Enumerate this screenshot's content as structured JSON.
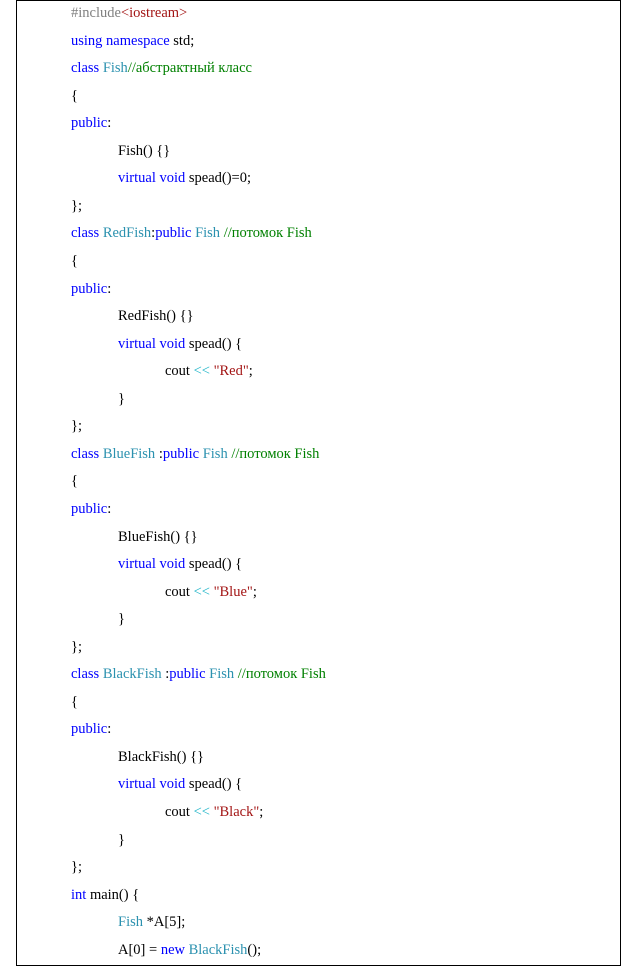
{
  "colors": {
    "keyword": "#0000ff",
    "type": "#2b91af",
    "comment": "#008000",
    "string": "#a31515",
    "operator": "#1fb5c8",
    "preprocessor": "#808080",
    "include_target": "#a31515",
    "default": "#000000"
  },
  "code_lines": [
    {
      "indent": 0,
      "tokens": [
        {
          "text": "#include",
          "kind": "preprocessor"
        },
        {
          "text": "<iostream>",
          "kind": "include_target"
        }
      ]
    },
    {
      "indent": 0,
      "tokens": [
        {
          "text": "using namespace",
          "kind": "keyword"
        },
        {
          "text": " std;",
          "kind": "default"
        }
      ]
    },
    {
      "indent": 0,
      "tokens": [
        {
          "text": "class",
          "kind": "keyword"
        },
        {
          "text": " ",
          "kind": "default"
        },
        {
          "text": "Fish",
          "kind": "type"
        },
        {
          "text": "//абстрактный класс",
          "kind": "comment"
        }
      ]
    },
    {
      "indent": 0,
      "tokens": [
        {
          "text": "{",
          "kind": "default"
        }
      ]
    },
    {
      "indent": 0,
      "tokens": [
        {
          "text": "public",
          "kind": "keyword"
        },
        {
          "text": ":",
          "kind": "default"
        }
      ]
    },
    {
      "indent": 1,
      "tokens": [
        {
          "text": "Fish() {}",
          "kind": "default"
        }
      ]
    },
    {
      "indent": 1,
      "tokens": [
        {
          "text": "virtual",
          "kind": "keyword"
        },
        {
          "text": " ",
          "kind": "default"
        },
        {
          "text": "void",
          "kind": "keyword"
        },
        {
          "text": " spead()=0;",
          "kind": "default"
        }
      ]
    },
    {
      "indent": 0,
      "tokens": [
        {
          "text": "};",
          "kind": "default"
        }
      ]
    },
    {
      "indent": 0,
      "tokens": [
        {
          "text": "class",
          "kind": "keyword"
        },
        {
          "text": " ",
          "kind": "default"
        },
        {
          "text": "RedFish",
          "kind": "type"
        },
        {
          "text": ":",
          "kind": "default"
        },
        {
          "text": "public",
          "kind": "keyword"
        },
        {
          "text": " ",
          "kind": "default"
        },
        {
          "text": "Fish",
          "kind": "type"
        },
        {
          "text": " ",
          "kind": "default"
        },
        {
          "text": "//потомок Fish",
          "kind": "comment"
        }
      ]
    },
    {
      "indent": 0,
      "tokens": [
        {
          "text": "{",
          "kind": "default"
        }
      ]
    },
    {
      "indent": 0,
      "tokens": [
        {
          "text": "public",
          "kind": "keyword"
        },
        {
          "text": ":",
          "kind": "default"
        }
      ]
    },
    {
      "indent": 1,
      "tokens": [
        {
          "text": "RedFish() {}",
          "kind": "default"
        }
      ]
    },
    {
      "indent": 1,
      "tokens": [
        {
          "text": "virtual",
          "kind": "keyword"
        },
        {
          "text": " ",
          "kind": "default"
        },
        {
          "text": "void",
          "kind": "keyword"
        },
        {
          "text": " spead() {",
          "kind": "default"
        }
      ]
    },
    {
      "indent": 2,
      "tokens": [
        {
          "text": "cout",
          "kind": "default"
        },
        {
          "text": " << ",
          "kind": "operator"
        },
        {
          "text": "\"Red\"",
          "kind": "string"
        },
        {
          "text": ";",
          "kind": "default"
        }
      ]
    },
    {
      "indent": 1,
      "tokens": [
        {
          "text": "}",
          "kind": "default"
        }
      ]
    },
    {
      "indent": 0,
      "tokens": [
        {
          "text": "};",
          "kind": "default"
        }
      ]
    },
    {
      "indent": 0,
      "tokens": [
        {
          "text": "class",
          "kind": "keyword"
        },
        {
          "text": " ",
          "kind": "default"
        },
        {
          "text": "BlueFish",
          "kind": "type"
        },
        {
          "text": " :",
          "kind": "default"
        },
        {
          "text": "public",
          "kind": "keyword"
        },
        {
          "text": " ",
          "kind": "default"
        },
        {
          "text": "Fish",
          "kind": "type"
        },
        {
          "text": " ",
          "kind": "default"
        },
        {
          "text": "//потомок Fish",
          "kind": "comment"
        }
      ]
    },
    {
      "indent": 0,
      "tokens": [
        {
          "text": "{",
          "kind": "default"
        }
      ]
    },
    {
      "indent": 0,
      "tokens": [
        {
          "text": "public",
          "kind": "keyword"
        },
        {
          "text": ":",
          "kind": "default"
        }
      ]
    },
    {
      "indent": 1,
      "tokens": [
        {
          "text": "BlueFish() {}",
          "kind": "default"
        }
      ]
    },
    {
      "indent": 1,
      "tokens": [
        {
          "text": "virtual",
          "kind": "keyword"
        },
        {
          "text": " ",
          "kind": "default"
        },
        {
          "text": "void",
          "kind": "keyword"
        },
        {
          "text": " spead() {",
          "kind": "default"
        }
      ]
    },
    {
      "indent": 2,
      "tokens": [
        {
          "text": "cout",
          "kind": "default"
        },
        {
          "text": " << ",
          "kind": "operator"
        },
        {
          "text": "\"Blue\"",
          "kind": "string"
        },
        {
          "text": ";",
          "kind": "default"
        }
      ]
    },
    {
      "indent": 1,
      "tokens": [
        {
          "text": "}",
          "kind": "default"
        }
      ]
    },
    {
      "indent": 0,
      "tokens": [
        {
          "text": "};",
          "kind": "default"
        }
      ]
    },
    {
      "indent": 0,
      "tokens": [
        {
          "text": "class",
          "kind": "keyword"
        },
        {
          "text": " ",
          "kind": "default"
        },
        {
          "text": "BlackFish",
          "kind": "type"
        },
        {
          "text": " :",
          "kind": "default"
        },
        {
          "text": "public",
          "kind": "keyword"
        },
        {
          "text": " ",
          "kind": "default"
        },
        {
          "text": "Fish",
          "kind": "type"
        },
        {
          "text": " ",
          "kind": "default"
        },
        {
          "text": "//потомок Fish",
          "kind": "comment"
        }
      ]
    },
    {
      "indent": 0,
      "tokens": [
        {
          "text": "{",
          "kind": "default"
        }
      ]
    },
    {
      "indent": 0,
      "tokens": [
        {
          "text": "public",
          "kind": "keyword"
        },
        {
          "text": ":",
          "kind": "default"
        }
      ]
    },
    {
      "indent": 1,
      "tokens": [
        {
          "text": "BlackFish() {}",
          "kind": "default"
        }
      ]
    },
    {
      "indent": 1,
      "tokens": [
        {
          "text": "virtual",
          "kind": "keyword"
        },
        {
          "text": " ",
          "kind": "default"
        },
        {
          "text": "void",
          "kind": "keyword"
        },
        {
          "text": " spead() {",
          "kind": "default"
        }
      ]
    },
    {
      "indent": 2,
      "tokens": [
        {
          "text": "cout",
          "kind": "default"
        },
        {
          "text": " << ",
          "kind": "operator"
        },
        {
          "text": "\"Black\"",
          "kind": "string"
        },
        {
          "text": ";",
          "kind": "default"
        }
      ]
    },
    {
      "indent": 1,
      "tokens": [
        {
          "text": "}",
          "kind": "default"
        }
      ]
    },
    {
      "indent": 0,
      "tokens": [
        {
          "text": "};",
          "kind": "default"
        }
      ]
    },
    {
      "indent": 0,
      "tokens": [
        {
          "text": "int",
          "kind": "keyword"
        },
        {
          "text": " main() {",
          "kind": "default"
        }
      ]
    },
    {
      "indent": 1,
      "tokens": [
        {
          "text": "Fish",
          "kind": "type"
        },
        {
          "text": " *A[5];",
          "kind": "default"
        }
      ]
    },
    {
      "indent": 1,
      "tokens": [
        {
          "text": "A[0] = ",
          "kind": "default"
        },
        {
          "text": "new",
          "kind": "keyword"
        },
        {
          "text": " ",
          "kind": "default"
        },
        {
          "text": "BlackFish",
          "kind": "type"
        },
        {
          "text": "();",
          "kind": "default"
        }
      ]
    }
  ]
}
